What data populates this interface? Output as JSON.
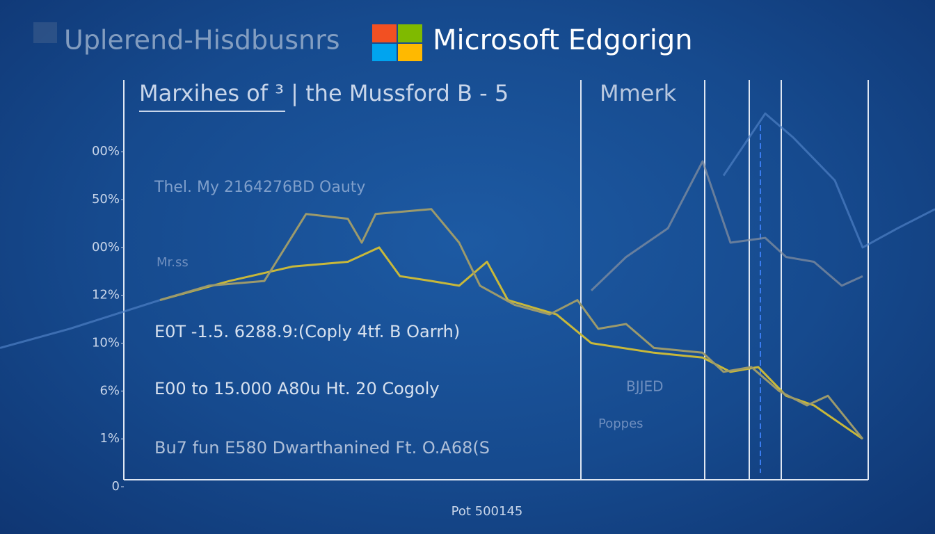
{
  "header": {
    "left_text": "Uplerend-Hisdbusnrs",
    "brand": "Microsoft Edgorign"
  },
  "chart_data": {
    "type": "line",
    "title": "Marxihes of ³ | the Mussford B - 5",
    "side_title": "Mmerk",
    "xlabel": "Pot 500145",
    "annotations": [
      "Thel. My 2164276BD Oauty",
      "Mr.ss",
      "E0T -1.5. 6288.9:(Coply 4tf. B Oarrh)",
      "E00 to 15.000 A80u Ht. 20 Cogoly",
      "Bu7 fun E580 Dwarthanined Ft. O.A68(S",
      "BJJED",
      "Poppes"
    ],
    "xlim": [
      0,
      1344
    ],
    "ylim": [
      0,
      85
    ],
    "yticks": [
      0,
      {
        "value": 10,
        "label": "1%"
      },
      {
        "value": 20,
        "label": "6%"
      },
      {
        "value": 30,
        "label": "10%"
      },
      {
        "value": 40,
        "label": "12%"
      },
      {
        "value": 50,
        "label": "00%"
      },
      {
        "value": 60,
        "label": "50%"
      },
      {
        "value": 70,
        "label": "00%"
      }
    ],
    "series": [
      {
        "color": "#c8b83a",
        "x": [
          230,
          330,
          420,
          500,
          545,
          575,
          620,
          660,
          700,
          730,
          800,
          850,
          940,
          1010,
          1050,
          1090,
          1130,
          1170,
          1240
        ],
        "values": [
          39,
          43,
          46,
          47,
          50,
          44,
          43,
          42,
          47,
          39,
          36,
          30,
          28,
          27,
          24,
          25,
          19,
          17,
          10
        ]
      },
      {
        "color": "#9c9a6c",
        "x": [
          230,
          300,
          380,
          440,
          500,
          520,
          540,
          620,
          660,
          690,
          740,
          790,
          830,
          860,
          900,
          940,
          1010,
          1040,
          1080,
          1120,
          1160,
          1190,
          1240
        ],
        "values": [
          39,
          42,
          43,
          57,
          56,
          51,
          57,
          58,
          51,
          42,
          38,
          36,
          39,
          33,
          34,
          29,
          28,
          24,
          25,
          20,
          17,
          19,
          10
        ]
      },
      {
        "color": "#8a93a0",
        "x": [
          850,
          900,
          960,
          1010,
          1050,
          1100,
          1130,
          1170,
          1210,
          1240
        ],
        "values": [
          41,
          48,
          54,
          68,
          51,
          52,
          48,
          47,
          42,
          44
        ]
      },
      {
        "color": "#4f80c4",
        "x": [
          0,
          100,
          230,
          null,
          1040,
          1100,
          1140,
          1200,
          1240,
          1290,
          1344
        ],
        "values": [
          29,
          33,
          39,
          null,
          65,
          78,
          73,
          64,
          50,
          54,
          58
        ]
      }
    ]
  }
}
